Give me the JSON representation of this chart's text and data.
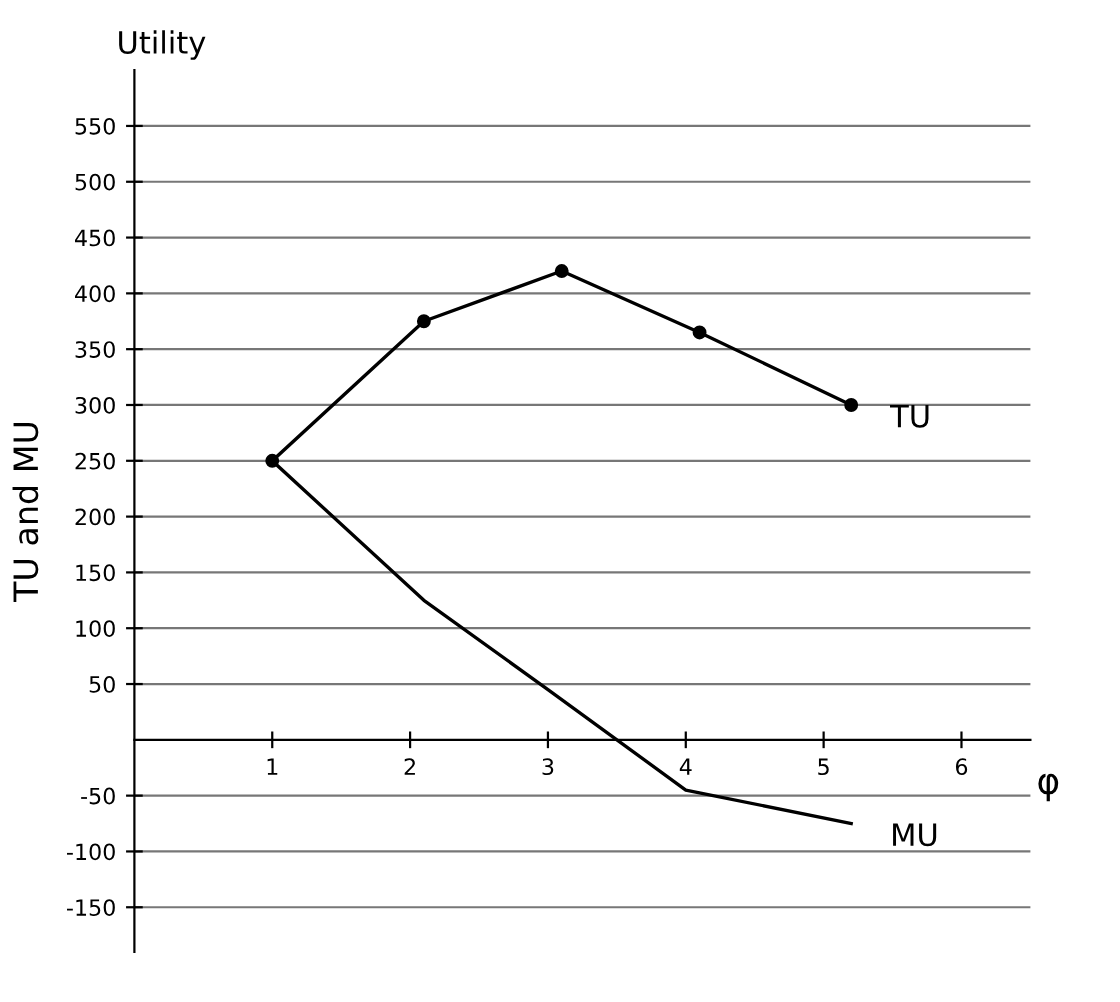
{
  "chart_data": {
    "type": "line",
    "title": "Utility",
    "xlabel": "φ",
    "ylabel": "TU and MU",
    "series": [
      {
        "name": "TU",
        "color": "#000000",
        "x": [
          1,
          2.1,
          3.1,
          4.1,
          5.2
        ],
        "values": [
          250,
          375,
          420,
          365,
          300
        ],
        "marker": "circle"
      },
      {
        "name": "MU",
        "color": "#000000",
        "x": [
          1,
          2.1,
          3,
          4,
          5.2
        ],
        "values": [
          250,
          125,
          45,
          -45,
          -75
        ],
        "marker": "none"
      }
    ],
    "xlim": [
      0,
      6.5
    ],
    "ylim": [
      -190,
      600
    ],
    "xticks": [
      1,
      2,
      3,
      4,
      5,
      6
    ],
    "yticks": [
      -150,
      -100,
      -50,
      50,
      100,
      150,
      200,
      250,
      300,
      350,
      400,
      450,
      500,
      550
    ],
    "grid": "y",
    "line_style": "solid"
  }
}
